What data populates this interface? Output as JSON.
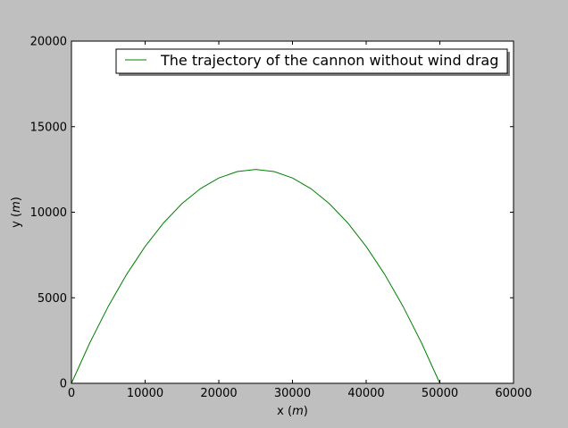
{
  "chart_data": {
    "type": "line",
    "xlabel": "x ($m$)",
    "ylabel": "y ($m$)",
    "xlim": [
      0,
      60000
    ],
    "ylim": [
      0,
      20000
    ],
    "xticks": [
      0,
      10000,
      20000,
      30000,
      40000,
      50000,
      60000
    ],
    "yticks": [
      0,
      5000,
      10000,
      15000,
      20000
    ],
    "xtick_labels": [
      "0",
      "10000",
      "20000",
      "30000",
      "40000",
      "50000",
      "60000"
    ],
    "ytick_labels": [
      "0",
      "5000",
      "10000",
      "15000",
      "20000"
    ],
    "grid": false,
    "legend_position": "top-right",
    "series": [
      {
        "name": "The trajectory of the cannon without wind drag",
        "color": "#008000",
        "x": [
          0,
          2500,
          5000,
          7500,
          10000,
          12500,
          15000,
          17500,
          20000,
          22500,
          25000,
          27500,
          30000,
          32500,
          35000,
          37500,
          40000,
          42500,
          45000,
          47500,
          50000
        ],
        "y": [
          0,
          2375,
          4500,
          6375,
          8000,
          9375,
          10500,
          11375,
          12000,
          12375,
          12500,
          12375,
          12000,
          11375,
          10500,
          9375,
          8000,
          6375,
          4500,
          2375,
          0
        ]
      }
    ]
  }
}
